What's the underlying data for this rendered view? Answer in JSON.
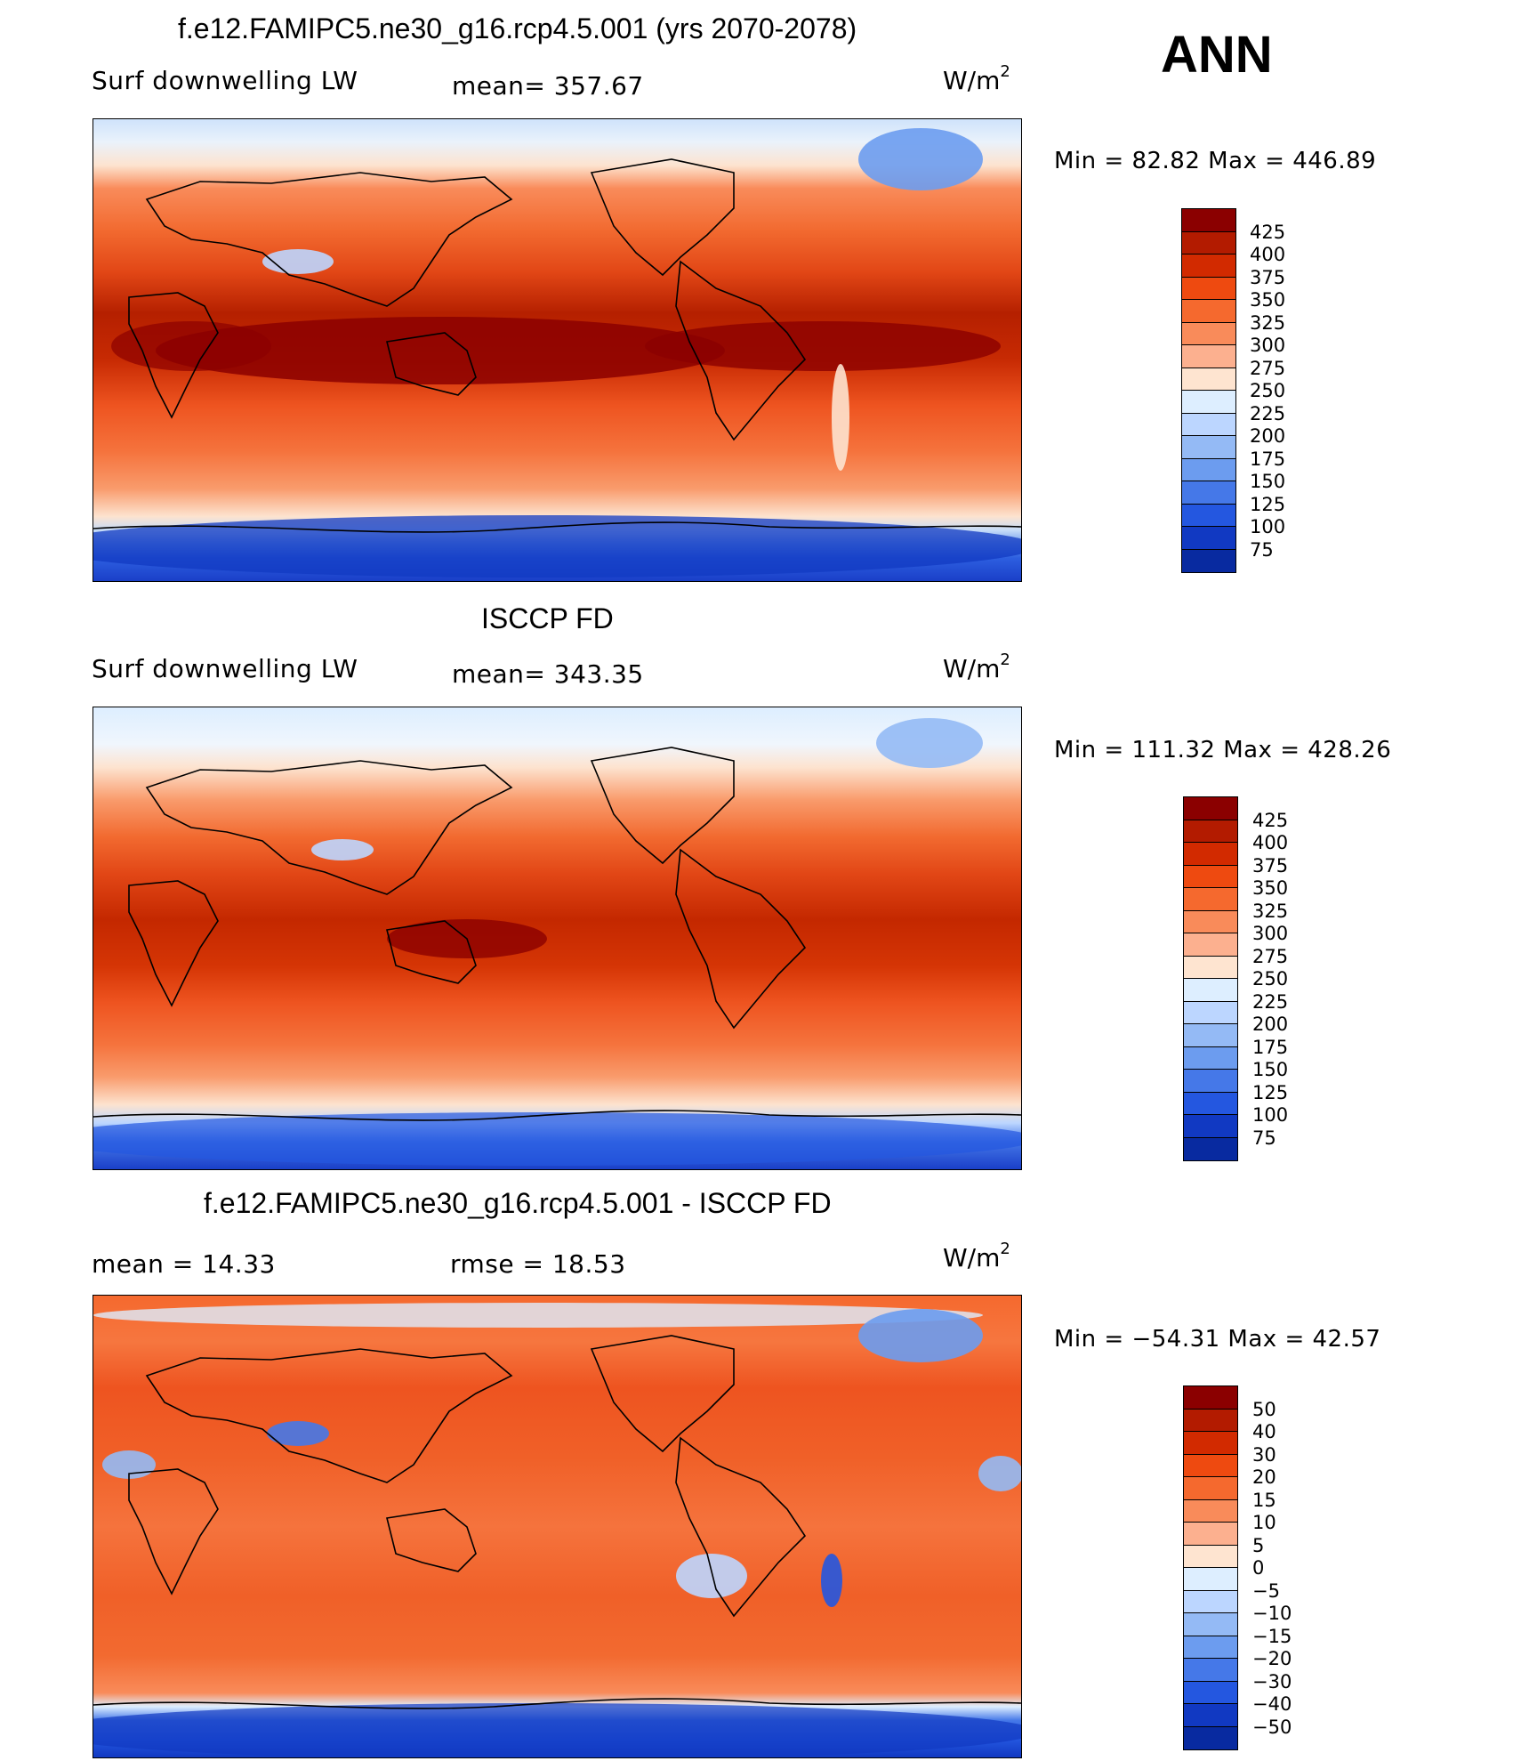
{
  "header": {
    "model_title": "f.e12.FAMIPC5.ne30_g16.rcp4.5.001 (yrs 2070-2078)",
    "season": "ANN"
  },
  "panels": [
    {
      "title": "",
      "variable": "Surf downwelling LW",
      "stat": "mean= 357.67",
      "stat2": "",
      "units_base": "W/m",
      "units_exp": "2",
      "minmax": "Min =   82.82  Max  =  446.89",
      "levels": [
        "425",
        "400",
        "375",
        "350",
        "325",
        "300",
        "275",
        "250",
        "225",
        "200",
        "175",
        "150",
        "125",
        "100",
        "75"
      ],
      "colors": [
        "#8b0000",
        "#b31b00",
        "#d22a00",
        "#ee4a10",
        "#f5692e",
        "#f98b5a",
        "#fcb08f",
        "#fee4d0",
        "#ddeeff",
        "#bcd6ff",
        "#94baf5",
        "#6c9cef",
        "#4578e8",
        "#2457e0",
        "#1139c2",
        "#082aa0"
      ]
    },
    {
      "title": "ISCCP FD",
      "variable": "Surf downwelling LW",
      "stat": "mean= 343.35",
      "stat2": "",
      "units_base": "W/m",
      "units_exp": "2",
      "minmax": "Min  =  111.32  Max  =  428.26",
      "levels": [
        "425",
        "400",
        "375",
        "350",
        "325",
        "300",
        "275",
        "250",
        "225",
        "200",
        "175",
        "150",
        "125",
        "100",
        "75"
      ],
      "colors": [
        "#8b0000",
        "#b31b00",
        "#d22a00",
        "#ee4a10",
        "#f5692e",
        "#f98b5a",
        "#fcb08f",
        "#fee4d0",
        "#ddeeff",
        "#bcd6ff",
        "#94baf5",
        "#6c9cef",
        "#4578e8",
        "#2457e0",
        "#1139c2",
        "#082aa0"
      ]
    },
    {
      "title": "f.e12.FAMIPC5.ne30_g16.rcp4.5.001 - ISCCP FD",
      "variable": "mean  =    14.33",
      "stat": "rmse  =    18.53",
      "stat2": "",
      "units_base": "W/m",
      "units_exp": "2",
      "minmax": "Min  = −54.31  Max  =   42.57",
      "levels": [
        "50",
        "40",
        "30",
        "20",
        "15",
        "10",
        "5",
        "0",
        "−5",
        "−10",
        "−15",
        "−20",
        "−30",
        "−40",
        "−50"
      ],
      "colors": [
        "#8b0000",
        "#b31b00",
        "#d22a00",
        "#ee4a10",
        "#f5692e",
        "#f98b5a",
        "#fcb08f",
        "#fee4d0",
        "#ddeeff",
        "#bcd6ff",
        "#94baf5",
        "#6c9cef",
        "#4578e8",
        "#2457e0",
        "#1139c2",
        "#082aa0"
      ]
    }
  ]
}
